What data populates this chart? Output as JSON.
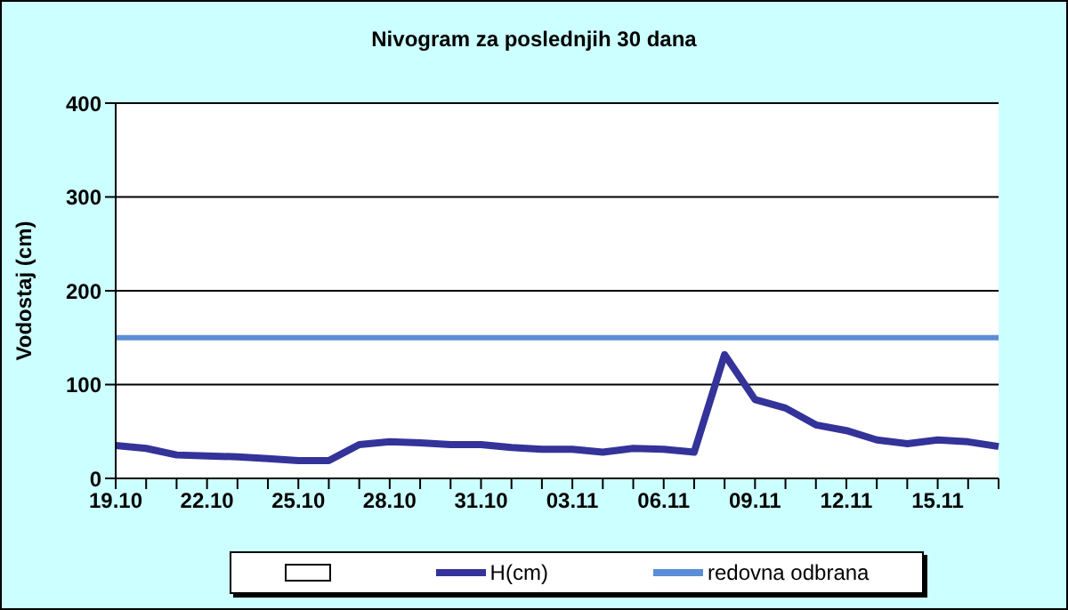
{
  "chart_data": {
    "type": "line",
    "title": "Nivogram za poslednjih 30 dana",
    "ylabel": "Vodostaj (cm)",
    "categories": [
      "19.10",
      null,
      null,
      "22.10",
      null,
      null,
      "25.10",
      null,
      null,
      "28.10",
      null,
      null,
      "31.10",
      null,
      null,
      "03.11",
      null,
      null,
      "06.11",
      null,
      null,
      "09.11",
      null,
      null,
      "12.11",
      null,
      null,
      "15.11",
      null,
      null
    ],
    "series": [
      {
        "name": "H(cm)",
        "color": "#333399",
        "values": [
          35,
          32,
          25,
          24,
          23,
          21,
          19,
          19,
          36,
          39,
          38,
          36,
          36,
          33,
          31,
          31,
          28,
          32,
          31,
          28,
          132,
          84,
          75,
          57,
          51,
          41,
          37,
          41,
          39,
          34
        ]
      }
    ],
    "ref_lines": [
      {
        "axis": "y",
        "value": 150,
        "label": "redovna odbrana",
        "color": "#5b8ed6"
      }
    ],
    "ylim": [
      0,
      400
    ],
    "yticks": [
      0,
      100,
      200,
      300,
      400
    ],
    "grid": "y",
    "legend": "bottom",
    "marker": "none",
    "line_style": "solid"
  }
}
